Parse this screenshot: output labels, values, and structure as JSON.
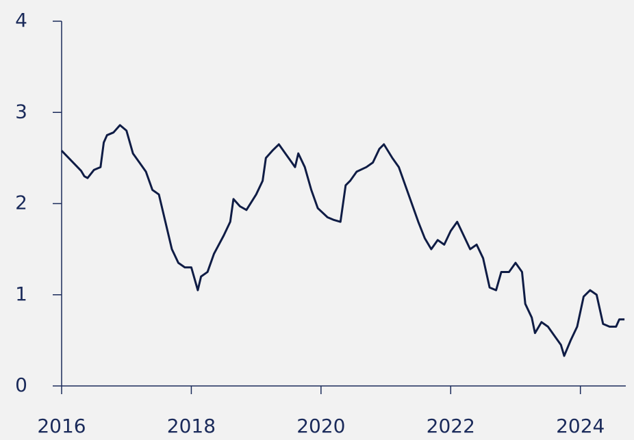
{
  "chart_data": {
    "type": "line",
    "x": [
      2016.0,
      2016.3,
      2016.35,
      2016.4,
      2016.5,
      2016.6,
      2016.65,
      2016.7,
      2016.8,
      2016.9,
      2017.0,
      2017.1,
      2017.2,
      2017.3,
      2017.4,
      2017.5,
      2017.6,
      2017.7,
      2017.8,
      2017.9,
      2018.0,
      2018.1,
      2018.15,
      2018.25,
      2018.35,
      2018.5,
      2018.6,
      2018.65,
      2018.75,
      2018.85,
      2019.0,
      2019.1,
      2019.15,
      2019.25,
      2019.35,
      2019.45,
      2019.55,
      2019.6,
      2019.65,
      2019.75,
      2019.85,
      2019.95,
      2020.1,
      2020.2,
      2020.3,
      2020.38,
      2020.45,
      2020.55,
      2020.7,
      2020.8,
      2020.9,
      2020.97,
      2021.1,
      2021.2,
      2021.3,
      2021.4,
      2021.5,
      2021.6,
      2021.7,
      2021.8,
      2021.9,
      2022.0,
      2022.1,
      2022.2,
      2022.3,
      2022.4,
      2022.5,
      2022.6,
      2022.7,
      2022.78,
      2022.9,
      2023.0,
      2023.1,
      2023.15,
      2023.25,
      2023.3,
      2023.4,
      2023.5,
      2023.6,
      2023.7,
      2023.75,
      2023.85,
      2023.95,
      2024.05,
      2024.15,
      2024.25,
      2024.35,
      2024.45,
      2024.55,
      2024.6,
      2024.68
    ],
    "series": [
      {
        "color": "#0f1c45",
        "values": [
          2.58,
          2.36,
          2.3,
          2.28,
          2.37,
          2.4,
          2.67,
          2.75,
          2.78,
          2.86,
          2.8,
          2.55,
          2.45,
          2.35,
          2.15,
          2.1,
          1.8,
          1.5,
          1.35,
          1.3,
          1.3,
          1.05,
          1.2,
          1.25,
          1.45,
          1.65,
          1.8,
          2.05,
          1.97,
          1.93,
          2.1,
          2.25,
          2.5,
          2.58,
          2.65,
          2.55,
          2.45,
          2.4,
          2.55,
          2.4,
          2.15,
          1.95,
          1.85,
          1.82,
          1.8,
          2.2,
          2.25,
          2.35,
          2.4,
          2.45,
          2.6,
          2.65,
          2.5,
          2.4,
          2.2,
          2.0,
          1.8,
          1.62,
          1.5,
          1.6,
          1.55,
          1.7,
          1.8,
          1.65,
          1.5,
          1.55,
          1.4,
          1.08,
          1.05,
          1.25,
          1.25,
          1.35,
          1.25,
          0.9,
          0.75,
          0.58,
          0.7,
          0.65,
          0.55,
          0.45,
          0.33,
          0.5,
          0.65,
          0.98,
          1.05,
          1.0,
          0.68,
          0.65,
          0.65,
          0.73,
          0.73
        ]
      }
    ],
    "xlim": [
      2016,
      2024.7
    ],
    "xticks": [
      2016,
      2018,
      2020,
      2022,
      2024
    ],
    "ylim": [
      0,
      4
    ],
    "yticks": [
      0,
      1,
      2,
      3,
      4
    ]
  }
}
